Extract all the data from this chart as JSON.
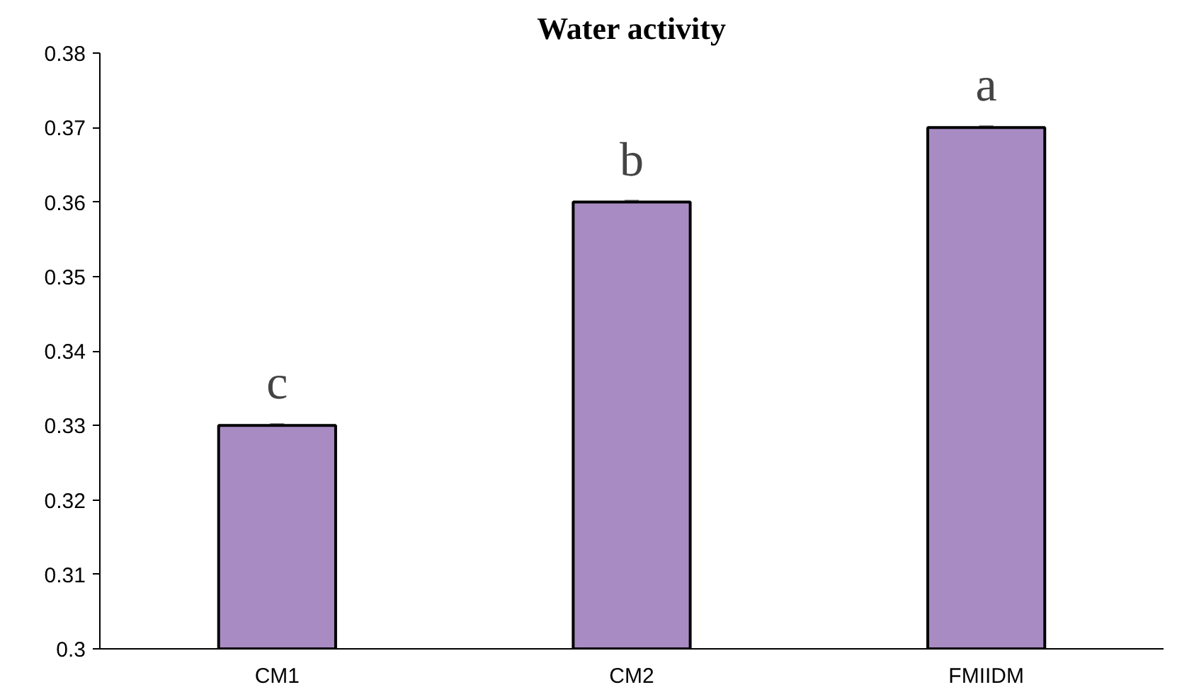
{
  "chart_data": {
    "type": "bar",
    "title": "Water activity",
    "categories": [
      "CM1",
      "CM2",
      "FMIIDM"
    ],
    "values": [
      0.33,
      0.36,
      0.37
    ],
    "errors": [
      0.0002,
      0.0002,
      0.0002
    ],
    "color": "#a98bc4",
    "ylim": [
      0.3,
      0.38
    ],
    "yticks": [
      0.3,
      0.31,
      0.32,
      0.33,
      0.34,
      0.35,
      0.36,
      0.37,
      0.38
    ],
    "grid": false,
    "annotations": [
      "c",
      "b",
      "a"
    ]
  }
}
